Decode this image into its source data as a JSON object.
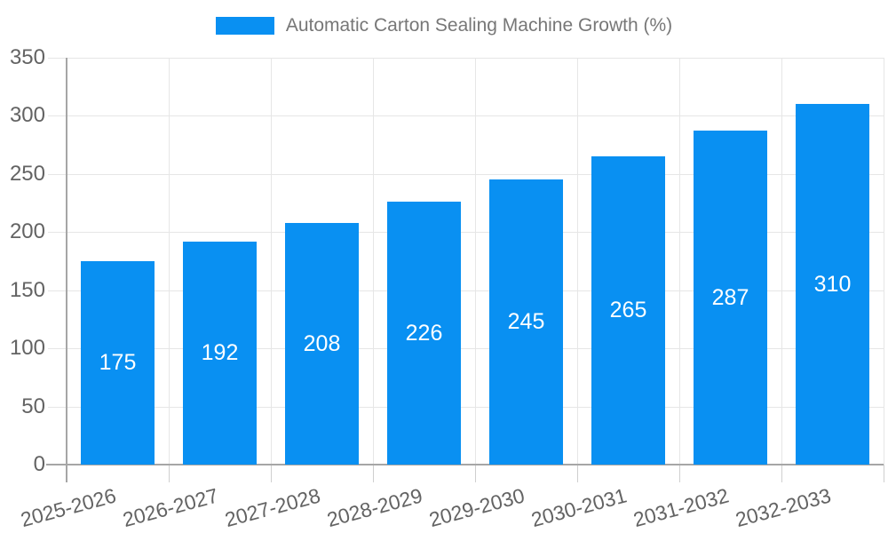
{
  "legend": {
    "label": "Automatic Carton Sealing Machine Growth (%)"
  },
  "colors": {
    "bar": "#0990f2",
    "grid": "#e6e6e6",
    "axis": "#a6a6a6",
    "x_tick": "#cfcfcf",
    "axis_label_text": "#636363",
    "legend_text": "#777777",
    "bar_value_text": "#ffffff",
    "background": "#ffffff"
  },
  "chart_data": {
    "type": "bar",
    "title": "",
    "xlabel": "",
    "ylabel": "",
    "categories": [
      "2025-2026",
      "2026-2027",
      "2027-2028",
      "2028-2029",
      "2029-2030",
      "2030-2031",
      "2031-2032",
      "2032-2033"
    ],
    "series": [
      {
        "name": "Automatic Carton Sealing Machine Growth (%)",
        "values": [
          175,
          192,
          208,
          226,
          245,
          265,
          287,
          310
        ]
      }
    ],
    "bar_labels_shown": true,
    "ylim": [
      0,
      350
    ],
    "yticks": [
      0,
      50,
      100,
      150,
      200,
      250,
      300,
      350
    ],
    "grid": true,
    "legend_position": "top",
    "x_label_rotation_deg": -15
  }
}
